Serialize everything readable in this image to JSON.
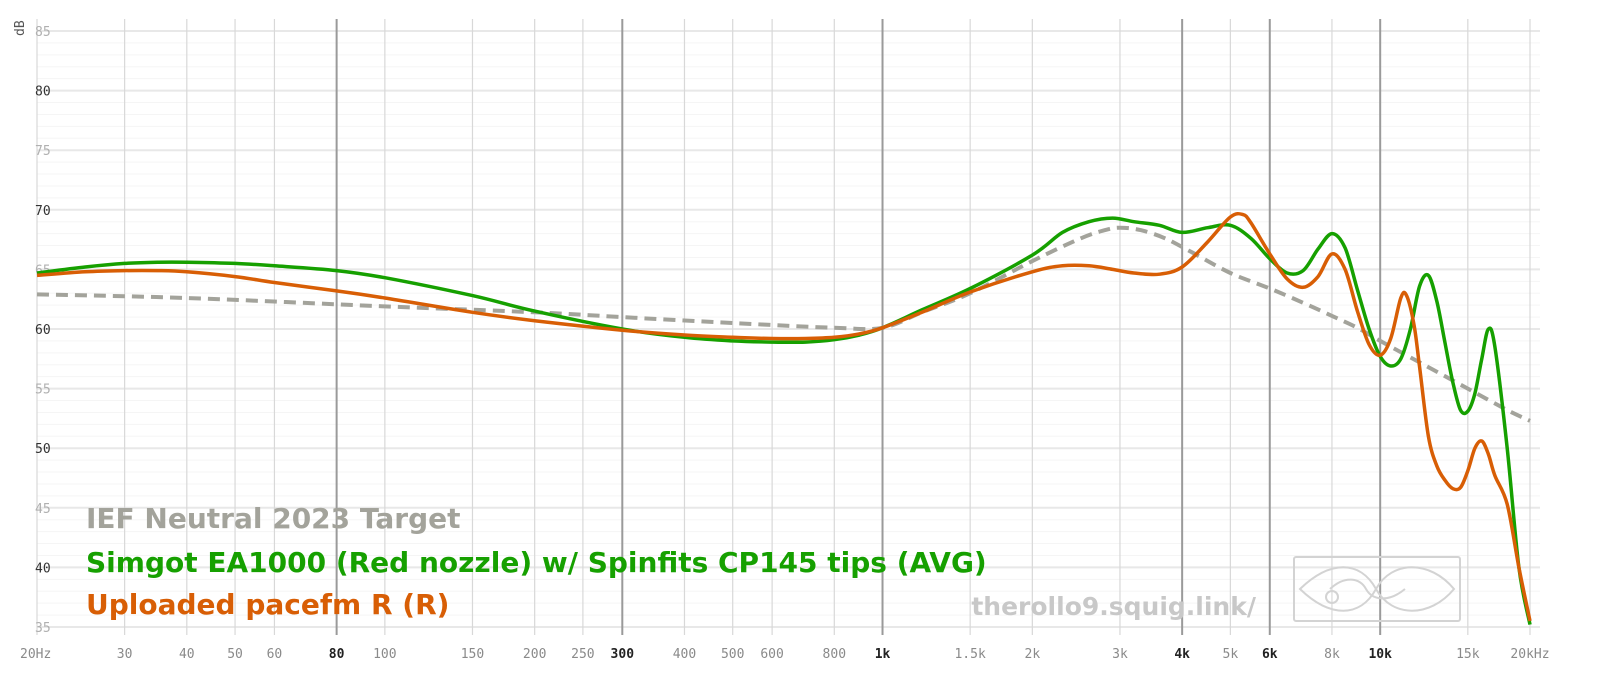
{
  "chart_data": {
    "type": "line",
    "ylabel": "dB",
    "xscale": "log",
    "xlim": [
      20,
      20000
    ],
    "ylim": [
      35,
      85
    ],
    "y_ticks": [
      {
        "value": 85,
        "label": "85",
        "bold": false
      },
      {
        "value": 80,
        "label": "80",
        "bold": true
      },
      {
        "value": 75,
        "label": "75",
        "bold": false
      },
      {
        "value": 70,
        "label": "70",
        "bold": true
      },
      {
        "value": 65,
        "label": "65",
        "bold": false
      },
      {
        "value": 60,
        "label": "60",
        "bold": true
      },
      {
        "value": 55,
        "label": "55",
        "bold": false
      },
      {
        "value": 50,
        "label": "50",
        "bold": true
      },
      {
        "value": 45,
        "label": "45",
        "bold": false
      },
      {
        "value": 40,
        "label": "40",
        "bold": true
      },
      {
        "value": 35,
        "label": "35",
        "bold": false
      }
    ],
    "x_ticks": [
      {
        "value": 20,
        "label": "20Hz",
        "bold": false
      },
      {
        "value": 30,
        "label": "30",
        "bold": false
      },
      {
        "value": 40,
        "label": "40",
        "bold": false
      },
      {
        "value": 50,
        "label": "50",
        "bold": false
      },
      {
        "value": 60,
        "label": "60",
        "bold": false
      },
      {
        "value": 80,
        "label": "80",
        "bold": true
      },
      {
        "value": 100,
        "label": "100",
        "bold": false
      },
      {
        "value": 150,
        "label": "150",
        "bold": false
      },
      {
        "value": 200,
        "label": "200",
        "bold": false
      },
      {
        "value": 250,
        "label": "250",
        "bold": false
      },
      {
        "value": 300,
        "label": "300",
        "bold": true
      },
      {
        "value": 400,
        "label": "400",
        "bold": false
      },
      {
        "value": 500,
        "label": "500",
        "bold": false
      },
      {
        "value": 600,
        "label": "600",
        "bold": false
      },
      {
        "value": 800,
        "label": "800",
        "bold": false
      },
      {
        "value": 1000,
        "label": "1k",
        "bold": true
      },
      {
        "value": 1500,
        "label": "1.5k",
        "bold": false
      },
      {
        "value": 2000,
        "label": "2k",
        "bold": false
      },
      {
        "value": 3000,
        "label": "3k",
        "bold": false
      },
      {
        "value": 4000,
        "label": "4k",
        "bold": true
      },
      {
        "value": 5000,
        "label": "5k",
        "bold": false
      },
      {
        "value": 6000,
        "label": "6k",
        "bold": true
      },
      {
        "value": 8000,
        "label": "8k",
        "bold": false
      },
      {
        "value": 10000,
        "label": "10k",
        "bold": true
      },
      {
        "value": 15000,
        "label": "15k",
        "bold": false
      },
      {
        "value": 20000,
        "label": "20kHz",
        "bold": false
      }
    ],
    "series": [
      {
        "name": "IEF Neutral 2023 Target",
        "color": "#a3a39b",
        "style": "dashed",
        "x": [
          20,
          40,
          100,
          200,
          300,
          500,
          800,
          1000,
          1200,
          1500,
          2000,
          2500,
          2800,
          3000,
          3300,
          3700,
          4200,
          5000,
          6000,
          7000,
          8000,
          9000,
          10000,
          12000,
          15000,
          18000,
          20000
        ],
        "y": [
          62.9,
          62.6,
          61.9,
          61.4,
          61.0,
          60.5,
          60.1,
          60.1,
          61.4,
          63.0,
          65.7,
          67.6,
          68.3,
          68.5,
          68.3,
          67.6,
          66.4,
          64.7,
          63.4,
          62.2,
          61.1,
          60.1,
          59.0,
          57.2,
          55.0,
          53.2,
          52.3
        ]
      },
      {
        "name": "Simgot EA1000 (Red nozzle) w/ Spinfits CP145 tips (AVG)",
        "color": "#16a000",
        "style": "solid",
        "x": [
          20,
          25,
          30,
          35,
          40,
          50,
          60,
          80,
          100,
          150,
          200,
          300,
          400,
          500,
          600,
          700,
          800,
          900,
          1000,
          1200,
          1500,
          2000,
          2300,
          2600,
          2900,
          3200,
          3600,
          4000,
          4500,
          5000,
          5500,
          6000,
          6500,
          7000,
          7500,
          8000,
          8500,
          9000,
          9500,
          10000,
          10500,
          11000,
          11500,
          12000,
          12500,
          13000,
          13500,
          14000,
          14500,
          15000,
          15500,
          16000,
          16500,
          17000,
          18000,
          19000,
          20000
        ],
        "y": [
          64.7,
          65.2,
          65.5,
          65.6,
          65.6,
          65.5,
          65.3,
          64.9,
          64.3,
          62.8,
          61.5,
          60.0,
          59.3,
          59.0,
          58.9,
          58.9,
          59.1,
          59.5,
          60.1,
          61.6,
          63.4,
          66.2,
          68.1,
          69.0,
          69.3,
          69.0,
          68.7,
          68.1,
          68.5,
          68.7,
          67.6,
          65.9,
          64.7,
          64.9,
          66.7,
          68.0,
          66.8,
          63.3,
          60.0,
          57.7,
          56.9,
          57.5,
          60.0,
          63.6,
          64.5,
          62.3,
          58.8,
          55.5,
          53.2,
          53.1,
          54.6,
          57.5,
          60.0,
          58.5,
          50.0,
          40.0,
          35.2
        ]
      },
      {
        "name": "Uploaded pacefm R (R)",
        "color": "#d85e05",
        "style": "solid",
        "x": [
          20,
          25,
          30,
          35,
          40,
          50,
          60,
          80,
          100,
          150,
          200,
          300,
          400,
          500,
          600,
          700,
          800,
          900,
          1000,
          1200,
          1500,
          2000,
          2300,
          2600,
          2900,
          3200,
          3600,
          4000,
          4500,
          5000,
          5300,
          5500,
          6000,
          6500,
          7000,
          7500,
          8000,
          8500,
          9000,
          9500,
          10000,
          10500,
          11000,
          11300,
          11700,
          12000,
          12500,
          13000,
          13500,
          14000,
          14500,
          15000,
          15500,
          16000,
          16500,
          17000,
          18000,
          19000,
          20000
        ],
        "y": [
          64.5,
          64.8,
          64.9,
          64.9,
          64.8,
          64.4,
          63.9,
          63.2,
          62.6,
          61.4,
          60.7,
          59.9,
          59.5,
          59.3,
          59.2,
          59.2,
          59.3,
          59.6,
          60.1,
          61.4,
          63.1,
          64.8,
          65.3,
          65.3,
          65.0,
          64.7,
          64.6,
          65.2,
          67.3,
          69.4,
          69.6,
          68.9,
          66.3,
          64.2,
          63.5,
          64.4,
          66.3,
          65.0,
          61.5,
          58.7,
          57.8,
          59.2,
          62.6,
          62.8,
          60.3,
          56.8,
          51.0,
          48.5,
          47.3,
          46.6,
          46.7,
          48.1,
          50.0,
          50.6,
          49.5,
          47.7,
          45.3,
          40.0,
          35.5
        ]
      }
    ],
    "legend_placement": "bottom-left",
    "watermark_url": "therollo9.squig.link/",
    "grid": true
  }
}
